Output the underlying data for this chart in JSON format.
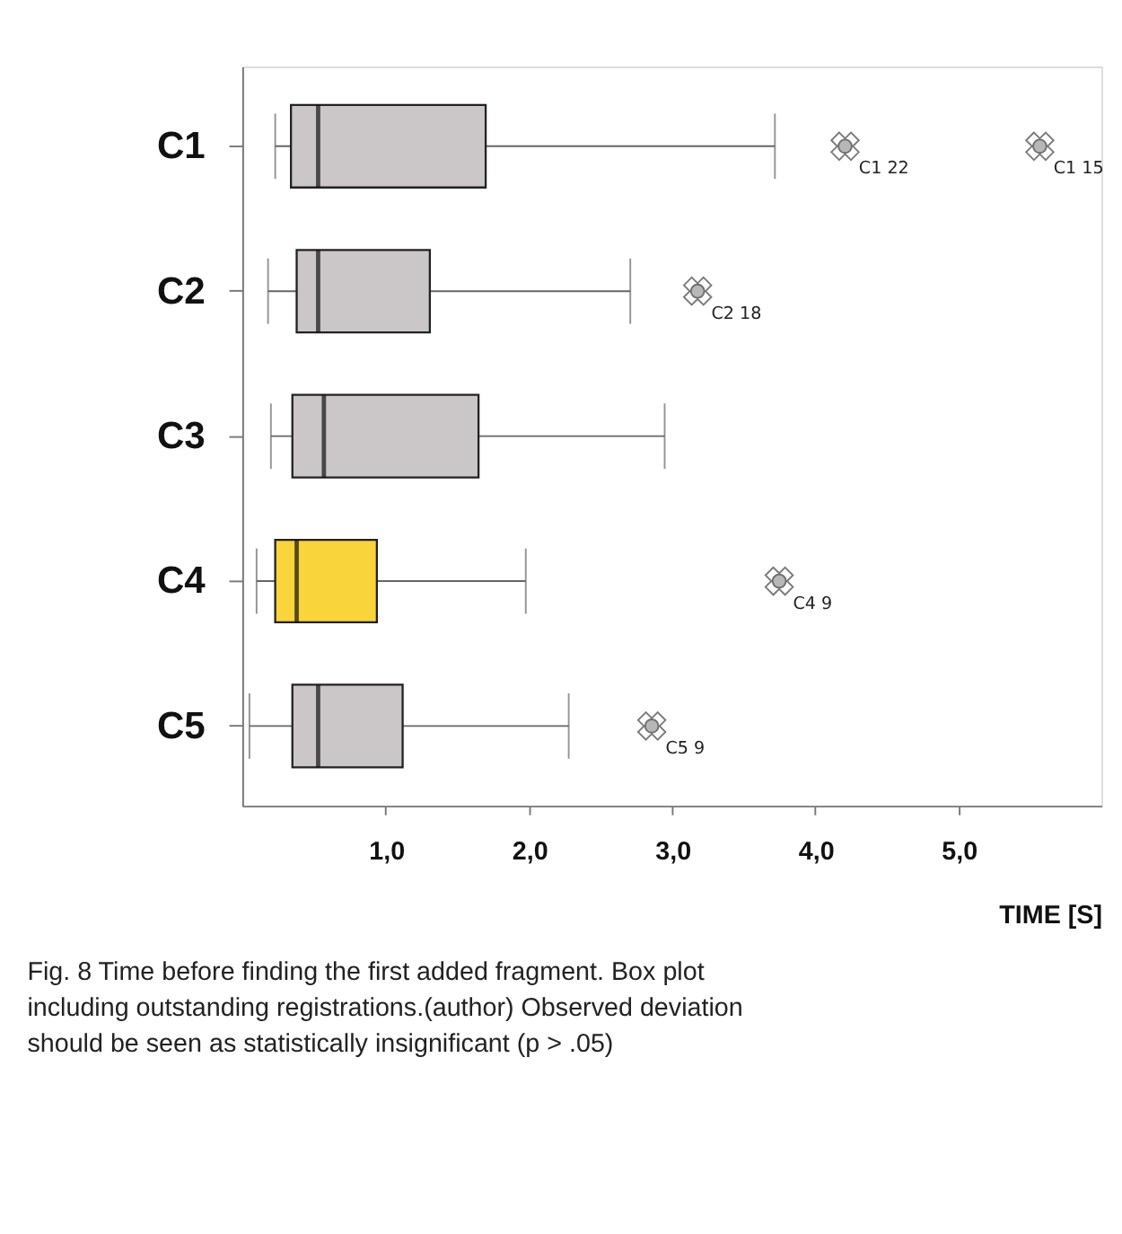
{
  "chart_data": {
    "type": "box",
    "orientation": "horizontal",
    "categories": [
      "C1",
      "C2",
      "C3",
      "C4",
      "C5"
    ],
    "boxes": [
      {
        "low": 0.23,
        "q1": 0.34,
        "median": 0.53,
        "q3": 1.7,
        "high": 3.72,
        "outliers": [
          4.21,
          5.57
        ]
      },
      {
        "low": 0.18,
        "q1": 0.38,
        "median": 0.53,
        "q3": 1.31,
        "high": 2.71,
        "outliers": [
          3.18
        ]
      },
      {
        "low": 0.2,
        "q1": 0.35,
        "median": 0.57,
        "q3": 1.65,
        "high": 2.95
      },
      {
        "low": 0.1,
        "q1": 0.23,
        "median": 0.38,
        "q3": 0.94,
        "high": 1.98,
        "outliers": [
          3.75
        ]
      },
      {
        "low": 0.05,
        "q1": 0.35,
        "median": 0.53,
        "q3": 1.12,
        "high": 2.28,
        "outliers": [
          2.86
        ]
      }
    ],
    "colors": [
      "#cbc6c8",
      "#cbc6c8",
      "#cbc6c8",
      "#f9d43a",
      "#cbc6c8"
    ],
    "xlabel": "TIME [S]",
    "xlim": [
      0,
      6.0
    ],
    "xticks": [
      {
        "value": 1,
        "label": "1,0"
      },
      {
        "value": 2,
        "label": "2,0"
      },
      {
        "value": 3,
        "label": "3,0"
      },
      {
        "value": 4,
        "label": "4,0"
      },
      {
        "value": 5,
        "label": "5,0"
      }
    ],
    "grid": false,
    "marker": "circle",
    "annotations": [
      "C1 22",
      "C1 15",
      "C2 18",
      "C4 9",
      "C5 9",
      "Fig. 8 Time before finding the first added fragment. Box plot including outstanding registrations.(author) Observed deviation should be seen as statistically insignificant (p > .05)"
    ]
  }
}
